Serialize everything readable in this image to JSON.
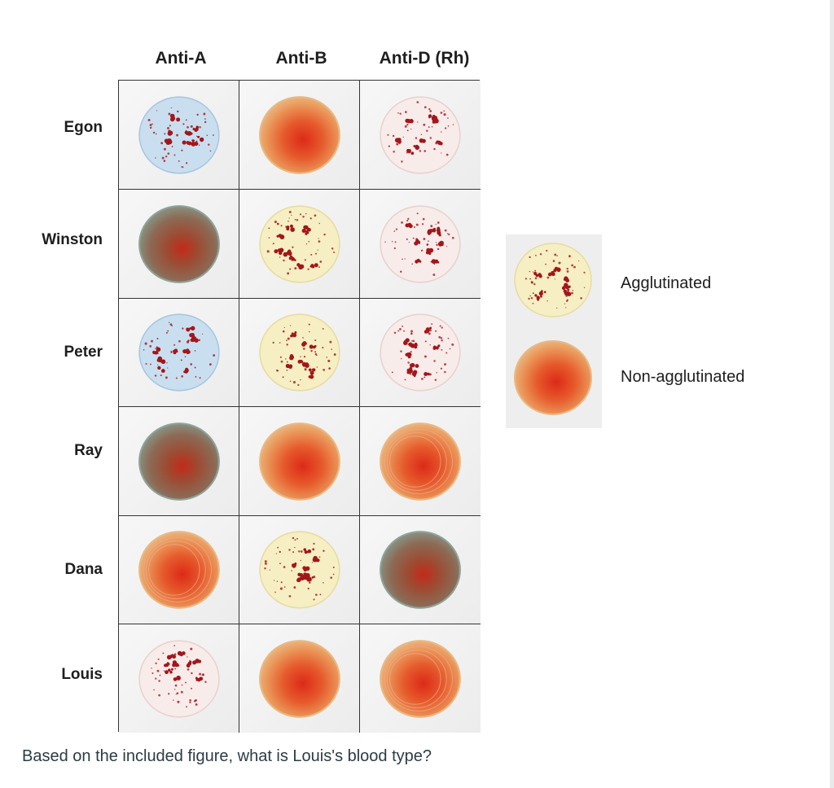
{
  "columns": [
    "Anti-A",
    "Anti-B",
    "Anti-D (Rh)"
  ],
  "rows": [
    {
      "name": "Egon",
      "results": [
        "agglutinated-blue",
        "non-agglutinated",
        "agglutinated-white"
      ]
    },
    {
      "name": "Winston",
      "results": [
        "non-agglutinated-dark",
        "agglutinated-yellow",
        "agglutinated-white"
      ]
    },
    {
      "name": "Peter",
      "results": [
        "agglutinated-blue",
        "agglutinated-yellow",
        "agglutinated-white"
      ]
    },
    {
      "name": "Ray",
      "results": [
        "non-agglutinated-dark",
        "non-agglutinated",
        "non-agglutinated-rings"
      ]
    },
    {
      "name": "Dana",
      "results": [
        "non-agglutinated-rings",
        "agglutinated-yellow",
        "non-agglutinated-dark"
      ]
    },
    {
      "name": "Louis",
      "results": [
        "agglutinated-white",
        "non-agglutinated",
        "non-agglutinated-rings"
      ]
    }
  ],
  "legend": {
    "agglutinated": "Agglutinated",
    "non_agglutinated": "Non-agglutinated"
  },
  "question": "Based on the included figure, what is Louis's blood type?",
  "colors": {
    "clump": "#a3161a",
    "blue_fill": "#c9dff0",
    "yellow_fill": "#f6efc4",
    "white_fill": "#f8ecea",
    "orange_core": "#dc2a18",
    "orange_edge": "#e9b07a",
    "dark_core": "#c32a1a",
    "dark_edge": "#8a8e7e"
  }
}
